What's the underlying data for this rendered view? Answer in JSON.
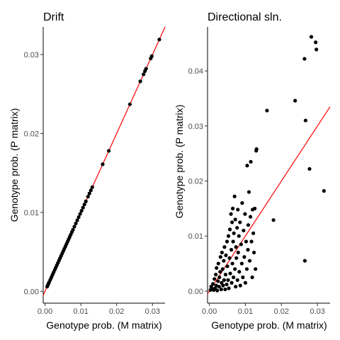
{
  "chart_data": [
    {
      "type": "scatter",
      "title": "Drift",
      "xlabel": "Genotype prob. (M matrix)",
      "ylabel": "Genotype prob. (P matrix)",
      "xlim": [
        -0.0005,
        0.0335
      ],
      "ylim": [
        -0.0015,
        0.0335
      ],
      "x_ticks": [
        0.0,
        0.01,
        0.02,
        0.03
      ],
      "x_tick_labels": [
        "0.00",
        "0.01",
        "0.02",
        "0.03"
      ],
      "y_ticks": [
        0.0,
        0.01,
        0.02,
        0.03
      ],
      "y_tick_labels": [
        "0.00",
        "0.01",
        "0.02",
        "0.03"
      ],
      "grid": false,
      "line": {
        "type": "identity",
        "color": "#ff0000"
      },
      "points": [
        [
          0.0006,
          0.0006
        ],
        [
          0.0008,
          0.0008
        ],
        [
          0.001,
          0.001
        ],
        [
          0.0012,
          0.0012
        ],
        [
          0.0015,
          0.0015
        ],
        [
          0.0018,
          0.0018
        ],
        [
          0.0021,
          0.0021
        ],
        [
          0.0024,
          0.0024
        ],
        [
          0.0027,
          0.0027
        ],
        [
          0.003,
          0.003
        ],
        [
          0.0033,
          0.0033
        ],
        [
          0.0036,
          0.0036
        ],
        [
          0.0039,
          0.0039
        ],
        [
          0.0042,
          0.0042
        ],
        [
          0.0045,
          0.0045
        ],
        [
          0.0048,
          0.0048
        ],
        [
          0.0051,
          0.0051
        ],
        [
          0.0054,
          0.0054
        ],
        [
          0.0057,
          0.0057
        ],
        [
          0.006,
          0.006
        ],
        [
          0.0063,
          0.0063
        ],
        [
          0.0066,
          0.0066
        ],
        [
          0.0069,
          0.0069
        ],
        [
          0.0072,
          0.0072
        ],
        [
          0.0075,
          0.0075
        ],
        [
          0.0078,
          0.0078
        ],
        [
          0.0082,
          0.0082
        ],
        [
          0.0086,
          0.0086
        ],
        [
          0.009,
          0.009
        ],
        [
          0.0094,
          0.0094
        ],
        [
          0.0098,
          0.0098
        ],
        [
          0.0102,
          0.0102
        ],
        [
          0.0106,
          0.0106
        ],
        [
          0.011,
          0.011
        ],
        [
          0.0114,
          0.0114
        ],
        [
          0.012,
          0.012
        ],
        [
          0.0124,
          0.0124
        ],
        [
          0.0128,
          0.0128
        ],
        [
          0.0132,
          0.0132
        ],
        [
          0.0161,
          0.0161
        ],
        [
          0.0178,
          0.0178
        ],
        [
          0.0237,
          0.0237
        ],
        [
          0.0266,
          0.0266
        ],
        [
          0.0275,
          0.0275
        ],
        [
          0.0279,
          0.0279
        ],
        [
          0.0282,
          0.0282
        ],
        [
          0.0295,
          0.0295
        ],
        [
          0.0298,
          0.0298
        ],
        [
          0.0319,
          0.0319
        ]
      ]
    },
    {
      "type": "scatter",
      "title": "Directional sln.",
      "xlabel": "Genotype prob. (M matrix)",
      "ylabel": "Genotype prob. (P matrix)",
      "xlim": [
        -0.0005,
        0.0335
      ],
      "ylim": [
        -0.0022,
        0.048
      ],
      "x_ticks": [
        0.0,
        0.01,
        0.02,
        0.03
      ],
      "x_tick_labels": [
        "0.00",
        "0.01",
        "0.02",
        "0.03"
      ],
      "y_ticks": [
        0.0,
        0.01,
        0.02,
        0.03,
        0.04
      ],
      "y_tick_labels": [
        "0.00",
        "0.01",
        "0.02",
        "0.03",
        "0.04"
      ],
      "grid": false,
      "line": {
        "type": "identity",
        "color": "#ff0000"
      },
      "points": [
        [
          0.0003,
          0.0002
        ],
        [
          0.0005,
          0.0008
        ],
        [
          0.0008,
          0.0004
        ],
        [
          0.001,
          0.0013
        ],
        [
          0.0012,
          0.0002
        ],
        [
          0.0014,
          0.0022
        ],
        [
          0.0016,
          0.0005
        ],
        [
          0.0018,
          0.003
        ],
        [
          0.0019,
          0.001
        ],
        [
          0.002,
          0.0042
        ],
        [
          0.0022,
          0.0001
        ],
        [
          0.0024,
          0.0018
        ],
        [
          0.0025,
          0.005
        ],
        [
          0.0027,
          0.0008
        ],
        [
          0.0028,
          0.0025
        ],
        [
          0.003,
          0.0035
        ],
        [
          0.0031,
          0.0062
        ],
        [
          0.0033,
          0.0003
        ],
        [
          0.0034,
          0.0015
        ],
        [
          0.0035,
          0.007
        ],
        [
          0.0037,
          0.004
        ],
        [
          0.0038,
          0.001
        ],
        [
          0.004,
          0.0055
        ],
        [
          0.0041,
          0.002
        ],
        [
          0.0042,
          0.008
        ],
        [
          0.0044,
          0.0003
        ],
        [
          0.0045,
          0.003
        ],
        [
          0.0046,
          0.0065
        ],
        [
          0.0048,
          0.0012
        ],
        [
          0.0049,
          0.009
        ],
        [
          0.005,
          0.0045
        ],
        [
          0.0052,
          0.002
        ],
        [
          0.0053,
          0.01
        ],
        [
          0.0054,
          0.0005
        ],
        [
          0.0056,
          0.006
        ],
        [
          0.0057,
          0.0112
        ],
        [
          0.0058,
          0.0032
        ],
        [
          0.006,
          0.014
        ],
        [
          0.0061,
          0.0075
        ],
        [
          0.0062,
          0.0015
        ],
        [
          0.0063,
          0.0125
        ],
        [
          0.0064,
          0.005
        ],
        [
          0.0065,
          0.015
        ],
        [
          0.0066,
          0.009
        ],
        [
          0.0067,
          0.0025
        ],
        [
          0.0068,
          0.0105
        ],
        [
          0.007,
          0.0172
        ],
        [
          0.0071,
          0.004
        ],
        [
          0.0072,
          0.013
        ],
        [
          0.0073,
          0.0008
        ],
        [
          0.0074,
          0.008
        ],
        [
          0.0075,
          0.006
        ],
        [
          0.0077,
          0.0115
        ],
        [
          0.0078,
          0.002
        ],
        [
          0.0079,
          0.0148
        ],
        [
          0.008,
          0.007
        ],
        [
          0.0082,
          0.01
        ],
        [
          0.0083,
          0.0035
        ],
        [
          0.0085,
          0.0125
        ],
        [
          0.0086,
          0.001
        ],
        [
          0.0088,
          0.0085
        ],
        [
          0.009,
          0.005
        ],
        [
          0.0091,
          0.016
        ],
        [
          0.0093,
          0.0025
        ],
        [
          0.0095,
          0.011
        ],
        [
          0.0097,
          0.0062
        ],
        [
          0.0099,
          0.014
        ],
        [
          0.01,
          0.0015
        ],
        [
          0.0102,
          0.009
        ],
        [
          0.0104,
          0.004
        ],
        [
          0.0105,
          0.0228
        ],
        [
          0.0107,
          0.0075
        ],
        [
          0.0108,
          0.012
        ],
        [
          0.011,
          0.018
        ],
        [
          0.0112,
          0.0055
        ],
        [
          0.0114,
          0.0135
        ],
        [
          0.0115,
          0.0235
        ],
        [
          0.0117,
          0.009
        ],
        [
          0.0119,
          0.0025
        ],
        [
          0.012,
          0.0148
        ],
        [
          0.0122,
          0.0105
        ],
        [
          0.0124,
          0.007
        ],
        [
          0.0126,
          0.015
        ],
        [
          0.0128,
          0.004
        ],
        [
          0.013,
          0.0255
        ],
        [
          0.0131,
          0.0258
        ],
        [
          0.016,
          0.0328
        ],
        [
          0.0178,
          0.0129
        ],
        [
          0.0238,
          0.0346
        ],
        [
          0.0264,
          0.0422
        ],
        [
          0.0265,
          0.0055
        ],
        [
          0.0267,
          0.031
        ],
        [
          0.0278,
          0.0222
        ],
        [
          0.0283,
          0.0462
        ],
        [
          0.0295,
          0.0452
        ],
        [
          0.0297,
          0.0439
        ],
        [
          0.0318,
          0.0182
        ]
      ]
    }
  ]
}
